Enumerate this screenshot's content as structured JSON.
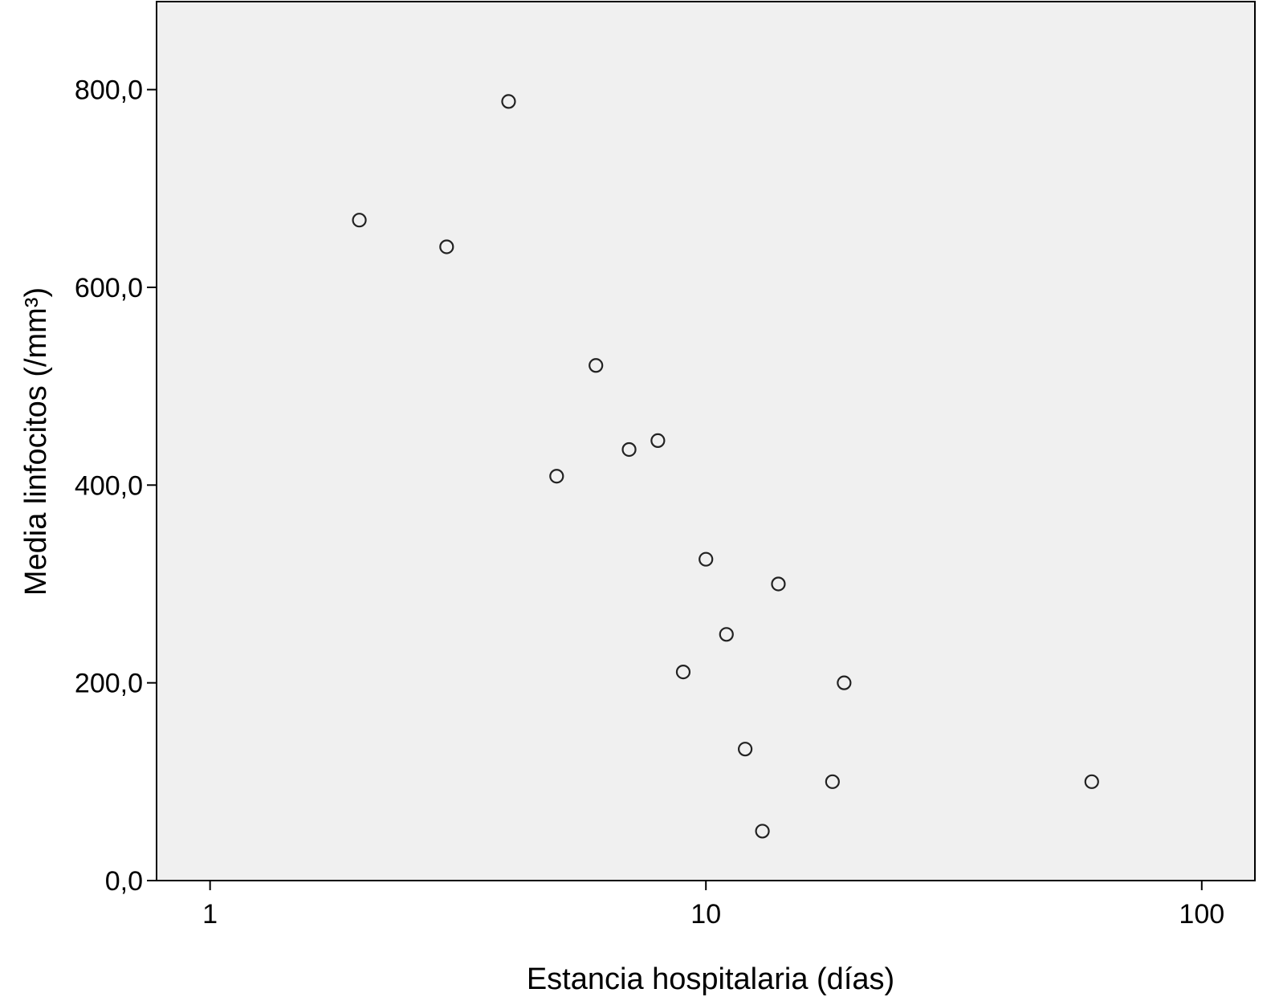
{
  "chart_data": {
    "type": "scatter",
    "title": "",
    "xlabel": "Estancia hospitalaria (días)",
    "ylabel": "Media linfocitos (/mm³)",
    "x_scale": "log",
    "xlim": [
      0.78,
      128
    ],
    "ylim": [
      0,
      889
    ],
    "x_ticks": [
      1,
      10,
      100
    ],
    "x_tick_labels": [
      "1",
      "10",
      "100"
    ],
    "y_ticks": [
      0,
      200,
      400,
      600,
      800
    ],
    "y_tick_labels": [
      "0,0",
      "200,0",
      "400,0",
      "600,0",
      "800,0"
    ],
    "grid": false,
    "background": "#f0f0f0",
    "marker": "open-circle",
    "points": [
      {
        "x": 4,
        "y": 788
      },
      {
        "x": 2,
        "y": 668
      },
      {
        "x": 3,
        "y": 641
      },
      {
        "x": 6,
        "y": 521
      },
      {
        "x": 8,
        "y": 445
      },
      {
        "x": 7,
        "y": 436
      },
      {
        "x": 5,
        "y": 409
      },
      {
        "x": 10,
        "y": 325
      },
      {
        "x": 14,
        "y": 300
      },
      {
        "x": 11,
        "y": 249
      },
      {
        "x": 9,
        "y": 211
      },
      {
        "x": 19,
        "y": 200
      },
      {
        "x": 12,
        "y": 133
      },
      {
        "x": 18,
        "y": 100
      },
      {
        "x": 60,
        "y": 100
      },
      {
        "x": 13,
        "y": 50
      }
    ]
  }
}
